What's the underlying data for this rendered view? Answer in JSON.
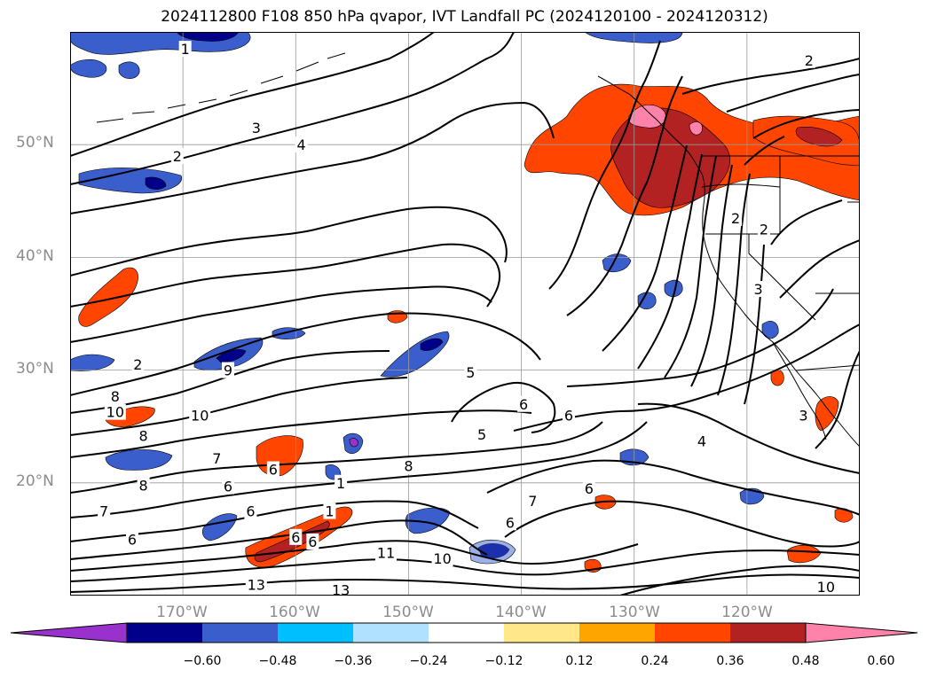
{
  "title": "2024112800 F108 850 hPa qvapor, IVT Landfall PC (2024120100 - 2024120312)",
  "lat_labels": [
    "50°N",
    "40°N",
    "30°N",
    "20°N"
  ],
  "lon_labels": [
    "170°W",
    "160°W",
    "150°W",
    "140°W",
    "130°W",
    "120°W"
  ],
  "colorbar": {
    "ticks": [
      "−0.60",
      "−0.48",
      "−0.36",
      "−0.24",
      "−0.12",
      "0.12",
      "0.24",
      "0.36",
      "0.48",
      "0.60"
    ],
    "colors": [
      "#9932CC",
      "#00008B",
      "#3A5FCD",
      "#00BFFF",
      "#B0E2FF",
      "#FFFFFF",
      "#FFE78A",
      "#FFA500",
      "#FF4500",
      "#B22222",
      "#FF82AB"
    ]
  },
  "contour_labels": [
    {
      "text": "1",
      "lon": -169.8,
      "lat": 58.5
    },
    {
      "text": "2",
      "lon": -114.5,
      "lat": 57.5
    },
    {
      "text": "3",
      "lon": -163.5,
      "lat": 51.5
    },
    {
      "text": "4",
      "lon": -159.5,
      "lat": 50.0
    },
    {
      "text": "2",
      "lon": -170.5,
      "lat": 49.0
    },
    {
      "text": "2",
      "lon": -121.0,
      "lat": 43.5
    },
    {
      "text": "2",
      "lon": -118.5,
      "lat": 42.5
    },
    {
      "text": "3",
      "lon": -119.0,
      "lat": 37.2
    },
    {
      "text": "2",
      "lon": -174.0,
      "lat": 30.5
    },
    {
      "text": "9",
      "lon": -166.0,
      "lat": 30.0
    },
    {
      "text": "5",
      "lon": -144.5,
      "lat": 29.8
    },
    {
      "text": "6",
      "lon": -139.8,
      "lat": 27.0
    },
    {
      "text": "6",
      "lon": -135.8,
      "lat": 26.0
    },
    {
      "text": "3",
      "lon": -115.0,
      "lat": 26.0
    },
    {
      "text": "8",
      "lon": -176.0,
      "lat": 27.7
    },
    {
      "text": "10",
      "lon": -176.0,
      "lat": 26.3
    },
    {
      "text": "10",
      "lon": -168.5,
      "lat": 26.0
    },
    {
      "text": "5",
      "lon": -143.5,
      "lat": 24.3
    },
    {
      "text": "4",
      "lon": -124.0,
      "lat": 23.7
    },
    {
      "text": "8",
      "lon": -173.5,
      "lat": 24.2
    },
    {
      "text": "7",
      "lon": -167.0,
      "lat": 22.2
    },
    {
      "text": "6",
      "lon": -162.0,
      "lat": 21.2
    },
    {
      "text": "8",
      "lon": -150.0,
      "lat": 21.5
    },
    {
      "text": "8",
      "lon": -173.5,
      "lat": 19.8
    },
    {
      "text": "6",
      "lon": -166.0,
      "lat": 19.7
    },
    {
      "text": "1",
      "lon": -156.0,
      "lat": 20.0
    },
    {
      "text": "6",
      "lon": -134.0,
      "lat": 19.5
    },
    {
      "text": "7",
      "lon": -139.0,
      "lat": 18.4
    },
    {
      "text": "7",
      "lon": -177.0,
      "lat": 17.5
    },
    {
      "text": "6",
      "lon": -164.0,
      "lat": 17.5
    },
    {
      "text": "1",
      "lon": -157.0,
      "lat": 17.5
    },
    {
      "text": "6",
      "lon": -141.0,
      "lat": 16.5
    },
    {
      "text": "6",
      "lon": -174.5,
      "lat": 15.0
    },
    {
      "text": "6",
      "lon": -160.0,
      "lat": 15.2
    },
    {
      "text": "6",
      "lon": -158.5,
      "lat": 14.8
    },
    {
      "text": "11",
      "lon": -152.0,
      "lat": 13.8
    },
    {
      "text": "10",
      "lon": -147.0,
      "lat": 13.3
    },
    {
      "text": "13",
      "lon": -163.5,
      "lat": 11.0
    },
    {
      "text": "13",
      "lon": -156.0,
      "lat": 10.5
    },
    {
      "text": "10",
      "lon": -113.0,
      "lat": 10.8
    }
  ]
}
